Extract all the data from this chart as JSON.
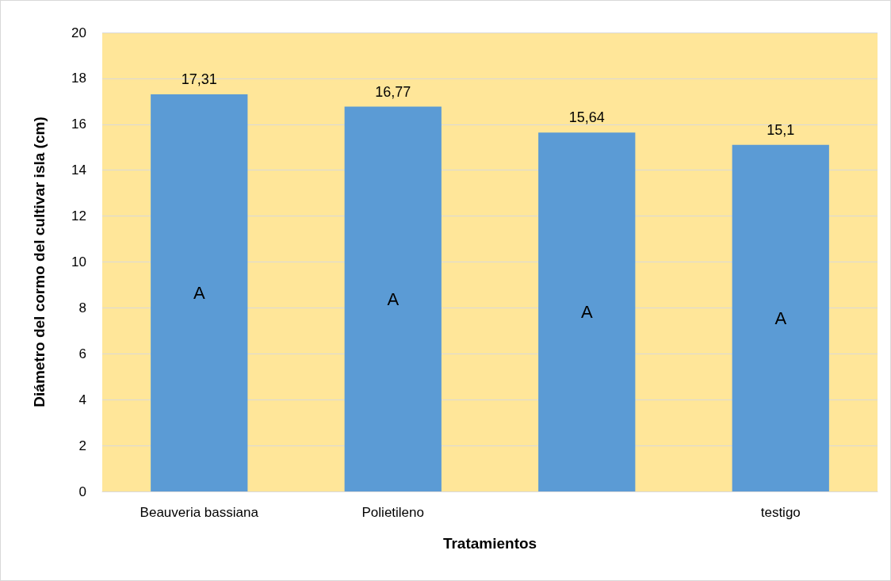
{
  "chart_data": {
    "type": "bar",
    "xlabel": "Tratamientos",
    "ylabel": "Diámetro del cormo del cultivar isla (cm)",
    "categories": [
      "Beauveria bassiana",
      "Polietileno",
      null,
      "testigo"
    ],
    "values": [
      17.31,
      16.77,
      15.64,
      15.1
    ],
    "color": "#5b9bd5",
    "value_labels": [
      "17,31",
      "16,77",
      "15,64",
      "15,1"
    ],
    "ylim": [
      0,
      20
    ],
    "yticks": [
      0,
      2,
      4,
      6,
      8,
      10,
      12,
      14,
      16,
      18,
      20
    ],
    "grid": "y",
    "annotations": [
      "A",
      "A",
      "A",
      "A"
    ]
  }
}
